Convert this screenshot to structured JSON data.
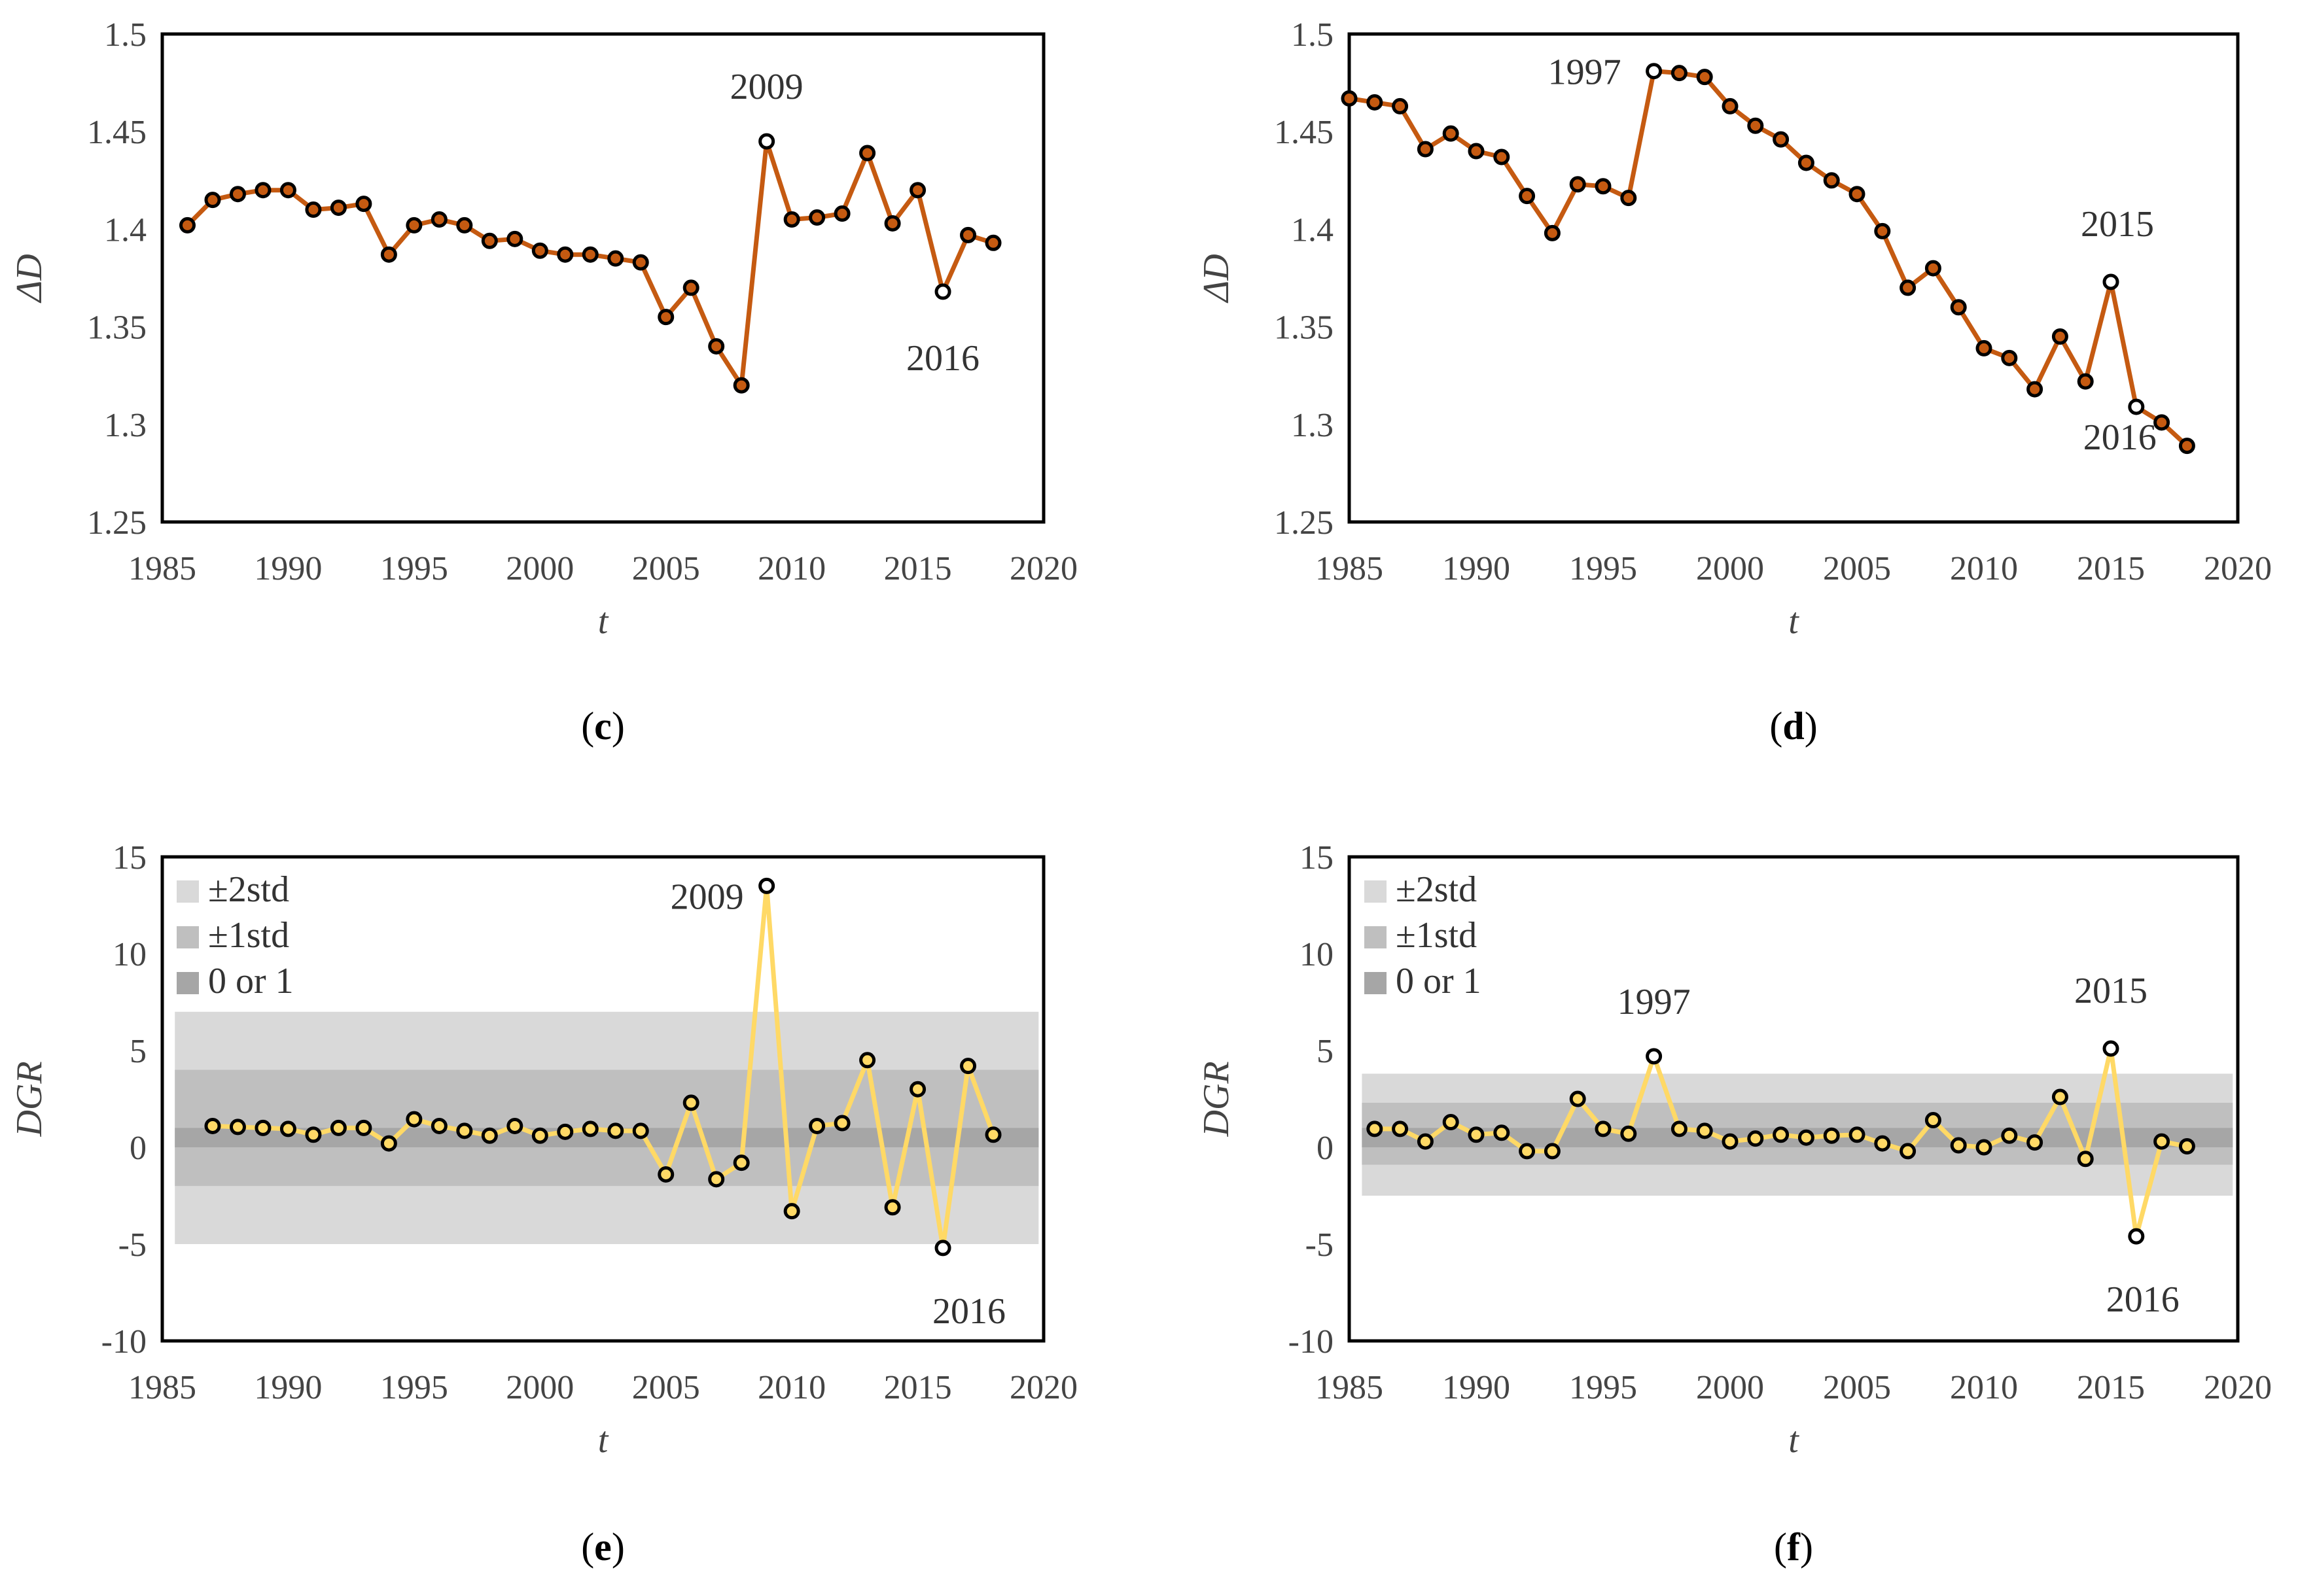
{
  "chart_data": [
    {
      "id": "c",
      "type": "line",
      "caption": "(c)",
      "xlabel": "t",
      "ylabel": "ΔD",
      "xlim": [
        1985,
        2020
      ],
      "ylim": [
        1.25,
        1.5
      ],
      "xticks": [
        "1985",
        "1990",
        "1995",
        "2000",
        "2005",
        "2010",
        "2015",
        "2020"
      ],
      "yticks": [
        "1.25",
        "1.3",
        "1.35",
        "1.4",
        "1.45",
        "1.5"
      ],
      "line_color": "#C55A11",
      "x": [
        1986,
        1987,
        1988,
        1989,
        1990,
        1991,
        1992,
        1993,
        1994,
        1995,
        1996,
        1997,
        1998,
        1999,
        2000,
        2001,
        2002,
        2003,
        2004,
        2005,
        2006,
        2007,
        2008,
        2009,
        2010,
        2011,
        2012,
        2013,
        2014,
        2015,
        2016,
        2017,
        2018
      ],
      "values": [
        1.402,
        1.415,
        1.418,
        1.42,
        1.42,
        1.41,
        1.411,
        1.413,
        1.387,
        1.402,
        1.405,
        1.402,
        1.394,
        1.395,
        1.389,
        1.387,
        1.387,
        1.385,
        1.383,
        1.355,
        1.37,
        1.34,
        1.32,
        1.445,
        1.405,
        1.406,
        1.408,
        1.439,
        1.403,
        1.42,
        1.368,
        1.397,
        1.393
      ],
      "highlight": [
        "2009",
        "2016"
      ],
      "annotations": [
        {
          "text": "2009",
          "x": 2009,
          "y": 1.445
        },
        {
          "text": "2016",
          "x": 2016,
          "y": 1.368
        }
      ]
    },
    {
      "id": "d",
      "type": "line",
      "caption": "(d)",
      "xlabel": "t",
      "ylabel": "ΔD",
      "xlim": [
        1985,
        2020
      ],
      "ylim": [
        1.25,
        1.5
      ],
      "xticks": [
        "1985",
        "1990",
        "1995",
        "2000",
        "2005",
        "2010",
        "2015",
        "2020"
      ],
      "yticks": [
        "1.25",
        "1.3",
        "1.35",
        "1.4",
        "1.45",
        "1.5"
      ],
      "line_color": "#C55A11",
      "x": [
        1985,
        1986,
        1987,
        1988,
        1989,
        1990,
        1991,
        1992,
        1993,
        1994,
        1995,
        1996,
        1997,
        1998,
        1999,
        2000,
        2001,
        2002,
        2003,
        2004,
        2005,
        2006,
        2007,
        2008,
        2009,
        2010,
        2011,
        2012,
        2013,
        2014,
        2015,
        2016,
        2017,
        2018
      ],
      "values": [
        1.467,
        1.465,
        1.463,
        1.441,
        1.449,
        1.44,
        1.437,
        1.417,
        1.398,
        1.423,
        1.422,
        1.416,
        1.481,
        1.48,
        1.478,
        1.463,
        1.453,
        1.446,
        1.434,
        1.425,
        1.418,
        1.399,
        1.37,
        1.38,
        1.36,
        1.339,
        1.334,
        1.318,
        1.345,
        1.322,
        1.373,
        1.309,
        1.301,
        1.289
      ],
      "highlight": [
        "1997",
        "2015",
        "2016"
      ],
      "annotations": [
        {
          "text": "1997",
          "x": 1997,
          "y": 1.481
        },
        {
          "text": "2015",
          "x": 2015,
          "y": 1.373
        },
        {
          "text": "2016",
          "x": 2016,
          "y": 1.309
        }
      ]
    },
    {
      "id": "e",
      "type": "line",
      "caption": "(e)",
      "xlabel": "t",
      "ylabel": "DGR",
      "xlim": [
        1985,
        2020
      ],
      "ylim": [
        -10,
        15
      ],
      "xticks": [
        "1985",
        "1990",
        "1995",
        "2000",
        "2005",
        "2010",
        "2015",
        "2020"
      ],
      "yticks": [
        "-10",
        "-5",
        "0",
        "5",
        "10",
        "15"
      ],
      "line_color": "#FFD966",
      "bands": {
        "two_std": [
          -5,
          7
        ],
        "one_std": [
          -2,
          4
        ],
        "zero_one": [
          0,
          1
        ]
      },
      "band_colors": {
        "two_std": "#D9D9D9",
        "one_std": "#BFBFBF",
        "zero_one": "#A6A6A6"
      },
      "legend": [
        "±2std",
        "±1std",
        "0 or 1"
      ],
      "x": [
        1987,
        1988,
        1989,
        1990,
        1991,
        1992,
        1993,
        1994,
        1995,
        1996,
        1997,
        1998,
        1999,
        2000,
        2001,
        2002,
        2003,
        2004,
        2005,
        2006,
        2007,
        2008,
        2009,
        2010,
        2011,
        2012,
        2013,
        2014,
        2015,
        2016,
        2017,
        2018
      ],
      "values": [
        1.1,
        1.05,
        1.0,
        0.95,
        0.65,
        1.0,
        1.0,
        0.2,
        1.45,
        1.1,
        0.85,
        0.6,
        1.1,
        0.6,
        0.8,
        0.95,
        0.85,
        0.85,
        -1.4,
        2.3,
        -1.65,
        -0.8,
        13.5,
        -3.3,
        1.1,
        1.25,
        4.5,
        -3.1,
        3.0,
        -5.2,
        4.2,
        0.65
      ],
      "highlight": [
        "2009",
        "2016"
      ],
      "annotations": [
        {
          "text": "2009",
          "x": 2009,
          "y": 13.5
        },
        {
          "text": "2016",
          "x": 2016,
          "y": -5.2
        }
      ]
    },
    {
      "id": "f",
      "type": "line",
      "caption": "(f)",
      "xlabel": "t",
      "ylabel": "DGR",
      "xlim": [
        1985,
        2020
      ],
      "ylim": [
        -10,
        15
      ],
      "xticks": [
        "1985",
        "1990",
        "1995",
        "2000",
        "2005",
        "2010",
        "2015",
        "2020"
      ],
      "yticks": [
        "-10",
        "-5",
        "0",
        "5",
        "10",
        "15"
      ],
      "line_color": "#FFD966",
      "bands": {
        "two_std": [
          -2.5,
          3.8
        ],
        "one_std": [
          -0.9,
          2.3
        ],
        "zero_one": [
          0,
          1
        ]
      },
      "band_colors": {
        "two_std": "#D9D9D9",
        "one_std": "#BFBFBF",
        "zero_one": "#A6A6A6"
      },
      "legend": [
        "±2std",
        "±1std",
        "0 or 1"
      ],
      "x": [
        1986,
        1987,
        1988,
        1989,
        1990,
        1991,
        1992,
        1993,
        1994,
        1995,
        1996,
        1997,
        1998,
        1999,
        2000,
        2001,
        2002,
        2003,
        2004,
        2005,
        2006,
        2007,
        2008,
        2009,
        2010,
        2011,
        2012,
        2013,
        2014,
        2015,
        2016,
        2017,
        2018
      ],
      "values": [
        0.95,
        0.95,
        0.3,
        1.3,
        0.65,
        0.75,
        -0.2,
        -0.2,
        2.5,
        0.95,
        0.7,
        4.7,
        0.95,
        0.85,
        0.3,
        0.45,
        0.65,
        0.5,
        0.6,
        0.65,
        0.2,
        -0.2,
        1.4,
        0.1,
        0.0,
        0.6,
        0.25,
        2.6,
        -0.6,
        5.1,
        -4.6,
        0.3,
        0.05
      ],
      "highlight": [
        "1997",
        "2015",
        "2016"
      ],
      "annotations": [
        {
          "text": "1997",
          "x": 1997,
          "y": 4.7
        },
        {
          "text": "2015",
          "x": 2015,
          "y": 5.1
        },
        {
          "text": "2016",
          "x": 2016,
          "y": -4.6
        }
      ]
    }
  ]
}
